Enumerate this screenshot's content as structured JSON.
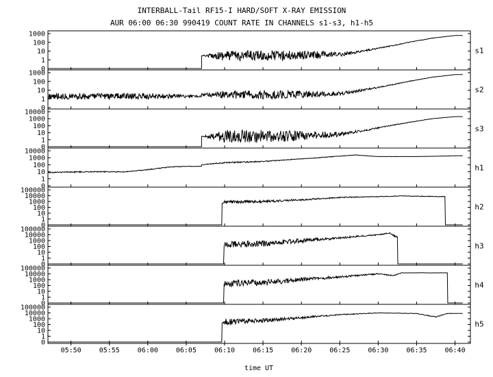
{
  "chart_data": {
    "type": "line",
    "title": "INTERBALL-Tail RF15-I HARD/SOFT X-RAY EMISSION",
    "subtitle": "AUR 06:00 06:30 990419  COUNT RATE IN CHANNELS s1-s3, h1-h5",
    "xlabel": "time UT",
    "x_tick_labels": [
      "05:50",
      "05:55",
      "06:00",
      "06:05",
      "06:10",
      "06:15",
      "06:20",
      "06:25",
      "06:30",
      "06:35",
      "06:40"
    ],
    "xlim": [
      "05:47",
      "06:42"
    ],
    "y_scale": "log",
    "grid": false,
    "panels": [
      {
        "name": "s1",
        "y_tick_labels": [
          "1000",
          "100",
          "10",
          "1",
          "0"
        ],
        "ylim": [
          0.1,
          1000
        ],
        "start": "06:07",
        "series": [
          {
            "x": [
              "05:47",
              "06:07",
              "06:07",
              "06:10",
              "06:16",
              "06:22",
              "06:25",
              "06:28",
              "06:31",
              "06:34",
              "06:37",
              "06:40",
              "06:41"
            ],
            "y": [
              0,
              0,
              3,
              3,
              3,
              3.5,
              4,
              10,
              30,
              100,
              300,
              600,
              600
            ],
            "noise": [
              0,
              0,
              0,
              0.5,
              0.5,
              0.4,
              0.2,
              0.1,
              0.05,
              0.03,
              0.02,
              0,
              0
            ]
          }
        ]
      },
      {
        "name": "s2",
        "y_tick_labels": [
          "1000",
          "100",
          "10",
          "1",
          "0"
        ],
        "ylim": [
          0.1,
          1000
        ],
        "series": [
          {
            "x": [
              "05:47",
              "05:55",
              "06:00",
              "06:07",
              "06:07",
              "06:10",
              "06:16",
              "06:22",
              "06:25",
              "06:28",
              "06:31",
              "06:34",
              "06:37",
              "06:40",
              "06:41"
            ],
            "y": [
              2,
              2,
              2,
              2,
              3,
              3,
              3,
              3.5,
              4,
              10,
              30,
              100,
              300,
              600,
              600
            ],
            "noise": [
              0.3,
              0.3,
              0.3,
              0.1,
              0.1,
              0.4,
              0.4,
              0.3,
              0.2,
              0.1,
              0.05,
              0.03,
              0.02,
              0,
              0
            ]
          }
        ]
      },
      {
        "name": "s3",
        "y_tick_labels": [
          "10000",
          "1000",
          "100",
          "10",
          "1",
          "0"
        ],
        "ylim": [
          0.1,
          10000
        ],
        "start": "06:07",
        "series": [
          {
            "x": [
              "05:47",
              "06:07",
              "06:07",
              "06:10",
              "06:16",
              "06:22",
              "06:25",
              "06:28",
              "06:31",
              "06:34",
              "06:37",
              "06:40",
              "06:41"
            ],
            "y": [
              0,
              0,
              3,
              3,
              3,
              4,
              6,
              20,
              80,
              300,
              1000,
              2000,
              2000
            ],
            "noise": [
              0,
              0,
              0,
              0.6,
              0.6,
              0.4,
              0.2,
              0.1,
              0.05,
              0.03,
              0.02,
              0,
              0
            ]
          }
        ]
      },
      {
        "name": "h1",
        "y_tick_labels": [
          "10000",
          "1000",
          "100",
          "10",
          "1",
          "0"
        ],
        "ylim": [
          0.1,
          10000
        ],
        "series": [
          {
            "x": [
              "05:47",
              "05:52",
              "05:57",
              "06:00",
              "06:03",
              "06:05",
              "06:07",
              "06:07",
              "06:10",
              "06:15",
              "06:18",
              "06:22",
              "06:27",
              "06:30",
              "06:35",
              "06:41"
            ],
            "y": [
              8,
              10,
              10,
              20,
              50,
              60,
              60,
              100,
              200,
              300,
              500,
              1000,
              2500,
              1500,
              1500,
              2000
            ],
            "noise": [
              0.05,
              0.05,
              0.04,
              0.04,
              0.04,
              0.02,
              0.02,
              0.02,
              0.08,
              0.05,
              0.03,
              0.03,
              0.02,
              0.01,
              0.01,
              0.01
            ]
          }
        ]
      },
      {
        "name": "h2",
        "y_tick_labels": [
          "100000",
          "10000",
          "1000",
          "100",
          "10",
          "1",
          "0"
        ],
        "ylim": [
          0.1,
          100000
        ],
        "series": [
          {
            "x": [
              "05:47",
              "06:09.5",
              "06:09.8",
              "06:10",
              "06:15",
              "06:20",
              "06:25",
              "06:30",
              "06:33",
              "06:38.5",
              "06:39",
              "06:41"
            ],
            "y": [
              0,
              0,
              500,
              800,
              1000,
              2000,
              5000,
              7000,
              9000,
              7000,
              0,
              0
            ],
            "noise": [
              0,
              0,
              0,
              0.15,
              0.12,
              0.08,
              0.05,
              0.03,
              0.03,
              0.03,
              0,
              0
            ]
          }
        ]
      },
      {
        "name": "h3",
        "y_tick_labels": [
          "100000",
          "10000",
          "1000",
          "100",
          "10",
          "1",
          "0"
        ],
        "ylim": [
          0.1,
          100000
        ],
        "series": [
          {
            "x": [
              "05:47",
              "06:09.8",
              "06:10",
              "06:15",
              "06:20",
              "06:25",
              "06:30",
              "06:31.5",
              "06:32.3",
              "06:32.8",
              "06:41"
            ],
            "y": [
              0,
              0,
              200,
              300,
              1000,
              3000,
              10000,
              20000,
              5000,
              0,
              0
            ],
            "noise": [
              0,
              0,
              0.3,
              0.3,
              0.2,
              0.1,
              0.05,
              0.05,
              0.1,
              0,
              0
            ]
          }
        ]
      },
      {
        "name": "h4",
        "y_tick_labels": [
          "100000",
          "10000",
          "1000",
          "100",
          "10",
          "1",
          "0"
        ],
        "ylim": [
          0.1,
          100000
        ],
        "series": [
          {
            "x": [
              "05:47",
              "06:09.8",
              "06:10",
              "06:15",
              "06:20",
              "06:25",
              "06:30",
              "06:32",
              "06:33",
              "06:39",
              "06:39.1",
              "06:41"
            ],
            "y": [
              0,
              0,
              200,
              300,
              1000,
              3000,
              10000,
              5000,
              15000,
              15000,
              0,
              0
            ],
            "noise": [
              0,
              0,
              0.3,
              0.3,
              0.2,
              0.1,
              0.05,
              0.05,
              0.02,
              0.01,
              0,
              0
            ]
          }
        ]
      },
      {
        "name": "h5",
        "y_tick_labels": [
          "100000",
          "10000",
          "1000",
          "100",
          "10",
          "1",
          "0"
        ],
        "ylim": [
          0.1,
          100000
        ],
        "series": [
          {
            "x": [
              "05:47",
              "06:09.5",
              "06:09.8",
              "06:10",
              "06:15",
              "06:20",
              "06:25",
              "06:30",
              "06:35",
              "06:37.5",
              "06:39",
              "06:41"
            ],
            "y": [
              0,
              0,
              200,
              300,
              500,
              1500,
              5000,
              10000,
              8000,
              2000,
              8000,
              8000
            ],
            "noise": [
              0,
              0,
              0,
              0.3,
              0.2,
              0.1,
              0.05,
              0.02,
              0.02,
              0.05,
              0.02,
              0
            ]
          }
        ]
      }
    ]
  }
}
